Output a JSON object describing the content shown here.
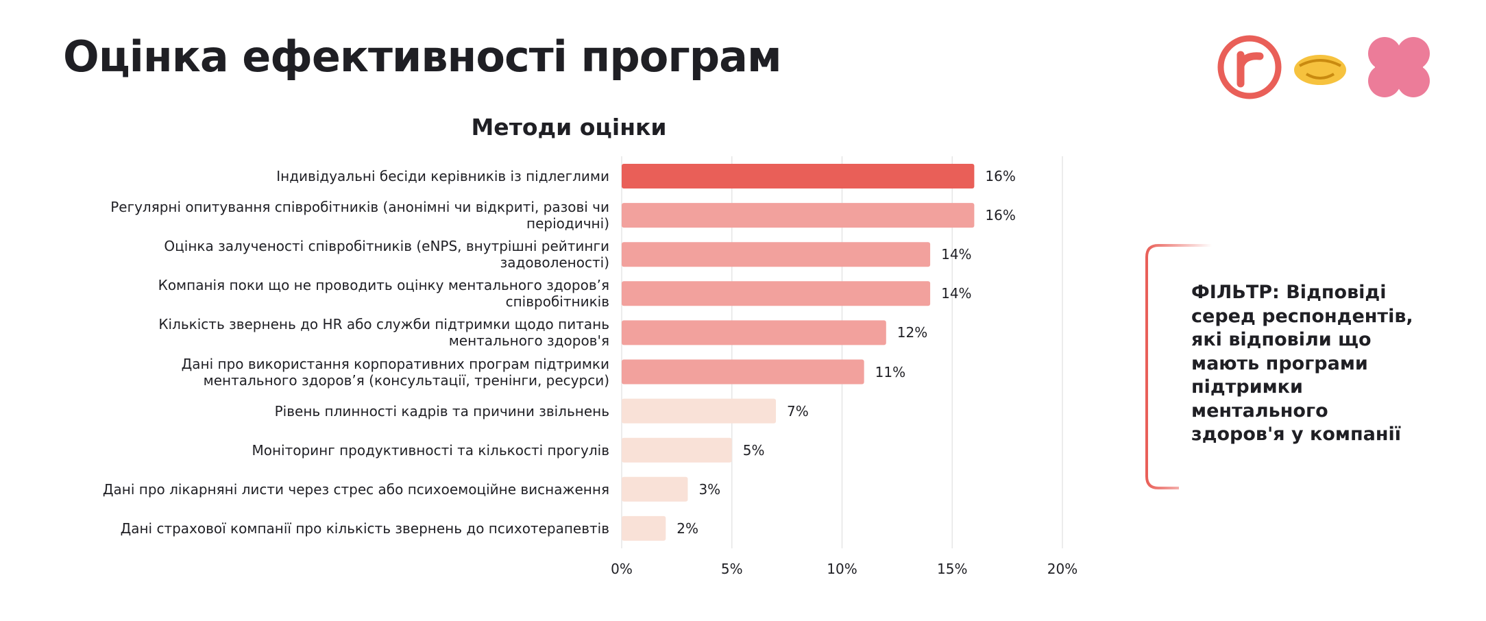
{
  "chart_data": {
    "type": "bar",
    "orientation": "horizontal",
    "title": "Оцінка ефективності програм",
    "subtitle": "Методи оцінки",
    "annotation": "ФІЛЬТР: Відповіді серед респондентів, які відповіли що мають програми підтримки ментального здоров'я у компанії",
    "categories": [
      "Індивідуальні бесіди керівників із підлеглими",
      "Регулярні опитування співробітників (анонімні чи відкриті, разові чи періодичні)",
      "Оцінка залученості співробітників (eNPS, внутрішні рейтинги задоволеності)",
      "Компанія поки що не проводить оцінку ментального здоров’я співробітників",
      "Кількість звернень до HR або служби підтримки щодо питань ментального здоров'я",
      "Дані про використання корпоративних програм підтримки ментального здоров’я  (консультації, тренінги, ресурси)",
      "Рівень плинності кадрів та причини звільнень",
      "Моніторинг продуктивності та кількості прогулів",
      "Дані про лікарняні листи через стрес або психоемоційне виснаження",
      "Дані страхової компанії про кількість звернень до психотерапевтів"
    ],
    "values": [
      16,
      16,
      14,
      14,
      12,
      11,
      7,
      5,
      3,
      2
    ],
    "value_labels": [
      "16%",
      "16%",
      "14%",
      "14%",
      "12%",
      "11%",
      "7%",
      "5%",
      "3%",
      "2%"
    ],
    "colors": [
      "#e95f58",
      "#f2a19d",
      "#f2a19d",
      "#f2a19d",
      "#f2a19d",
      "#f2a19d",
      "#f9e1d7",
      "#f9e1d7",
      "#f9e1d7",
      "#f9e1d7"
    ],
    "xlim": [
      0,
      20
    ],
    "xticks": [
      {
        "value": 0,
        "label": "0%"
      },
      {
        "value": 5,
        "label": "5%"
      },
      {
        "value": 10,
        "label": "10%"
      },
      {
        "value": 15,
        "label": "15%"
      },
      {
        "value": 20,
        "label": "20%"
      }
    ],
    "grid": true
  }
}
